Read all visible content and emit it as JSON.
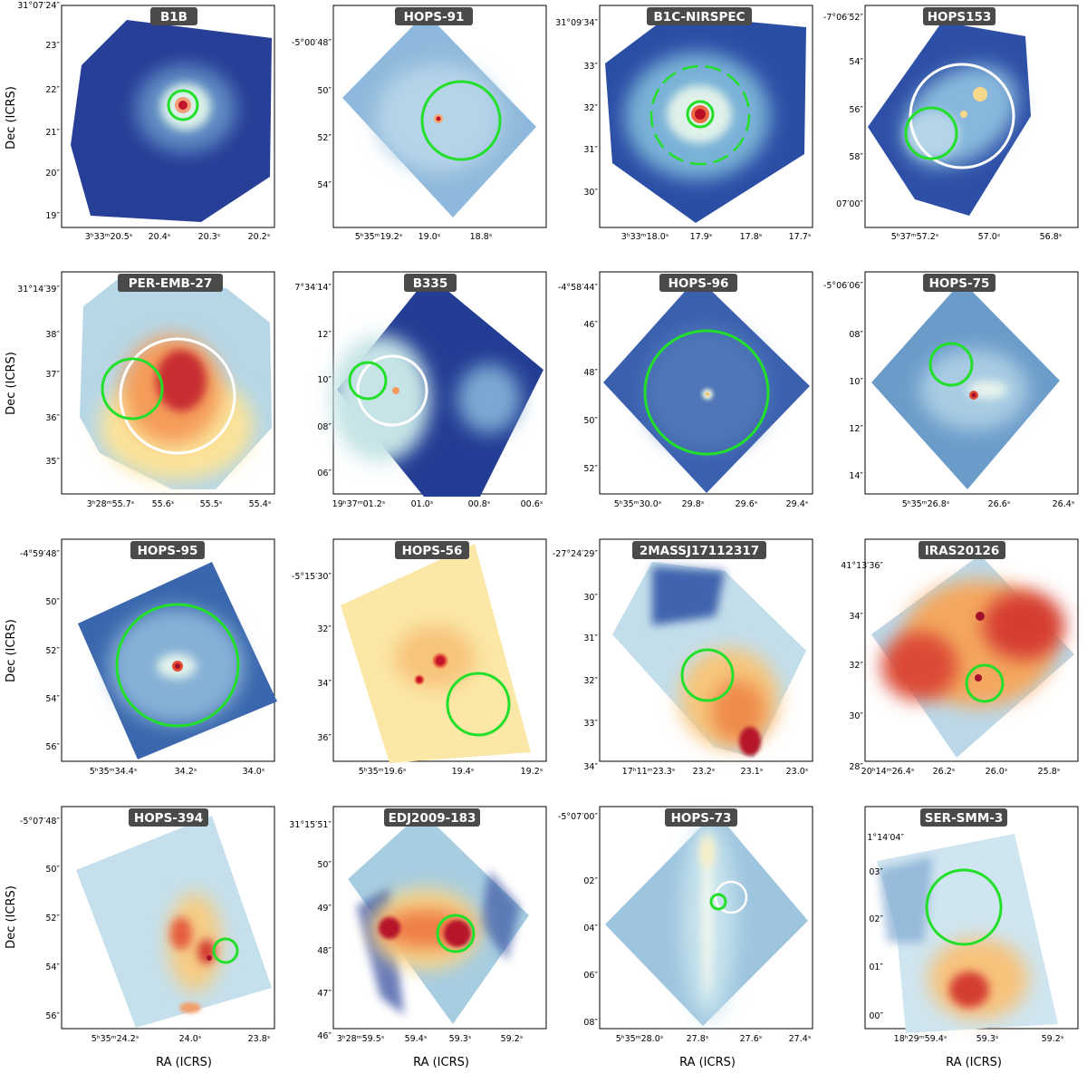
{
  "axis_labels": {
    "ra": "RA (ICRS)",
    "dec": "Dec (ICRS)"
  },
  "colors": {
    "marker_green": "#22e02a",
    "marker_white": "#ffffff",
    "title_bg": "#4a4a4a"
  },
  "panels": [
    {
      "title": "B1B",
      "colormap": "blue",
      "ra_ticks": [
        "3ʰ33ᵐ20.5ˢ",
        "20.4ˢ",
        "20.3ˢ",
        "20.2ˢ"
      ],
      "dec_ticks": [
        "31°07′24″",
        "23″",
        "22″",
        "21″",
        "20″",
        "19″"
      ]
    },
    {
      "title": "HOPS-91",
      "colormap": "lightblue",
      "ra_ticks": [
        "5ʰ35ᵐ19.2ˢ",
        "19.0ˢ",
        "18.8ˢ"
      ],
      "dec_ticks": [
        "-5°00′48″",
        "50″",
        "52″",
        "54″"
      ]
    },
    {
      "title": "B1C-NIRSPEC",
      "colormap": "blue",
      "ra_ticks": [
        "3ʰ33ᵐ18.0ˢ",
        "17.9ˢ",
        "17.8ˢ",
        "17.7ˢ"
      ],
      "dec_ticks": [
        "31°09′34″",
        "33″",
        "32″",
        "31″",
        "30″"
      ]
    },
    {
      "title": "HOPS153",
      "colormap": "blue",
      "ra_ticks": [
        "5ʰ37ᵐ57.2ˢ",
        "57.0ˢ",
        "56.8ˢ"
      ],
      "dec_ticks": [
        "-7°06′52″",
        "54″",
        "56″",
        "58″",
        "07′00″"
      ]
    },
    {
      "title": "PER-EMB-27",
      "colormap": "warm",
      "ra_ticks": [
        "3ʰ28ᵐ55.7ˢ",
        "55.6ˢ",
        "55.5ˢ",
        "55.4ˢ"
      ],
      "dec_ticks": [
        "31°14′39″",
        "38″",
        "37″",
        "36″",
        "35″"
      ]
    },
    {
      "title": "B335",
      "colormap": "blue",
      "ra_ticks": [
        "19ʰ37ᵐ01.2ˢ",
        "01.0ˢ",
        "00.8ˢ",
        "00.6ˢ"
      ],
      "dec_ticks": [
        "7°34′14″",
        "12″",
        "10″",
        "08″",
        "06″"
      ]
    },
    {
      "title": "HOPS-96",
      "colormap": "blue",
      "ra_ticks": [
        "5ʰ35ᵐ30.0ˢ",
        "29.8ˢ",
        "29.6ˢ",
        "29.4ˢ"
      ],
      "dec_ticks": [
        "-4°58′44″",
        "46″",
        "48″",
        "50″",
        "52″"
      ]
    },
    {
      "title": "HOPS-75",
      "colormap": "lightblue",
      "ra_ticks": [
        "5ʰ35ᵐ26.8ˢ",
        "26.6ˢ",
        "26.4ˢ"
      ],
      "dec_ticks": [
        "-5°06′06″",
        "08″",
        "10″",
        "12″",
        "14″"
      ]
    },
    {
      "title": "HOPS-95",
      "colormap": "lightblue",
      "ra_ticks": [
        "5ʰ35ᵐ34.4ˢ",
        "34.2ˢ",
        "34.0ˢ"
      ],
      "dec_ticks": [
        "-4°59′48″",
        "50″",
        "52″",
        "54″",
        "56″"
      ]
    },
    {
      "title": "HOPS-56",
      "colormap": "yellow",
      "ra_ticks": [
        "5ʰ35ᵐ19.6ˢ",
        "19.4ˢ",
        "19.2ˢ"
      ],
      "dec_ticks": [
        "-5°15′30″",
        "32″",
        "34″",
        "36″"
      ]
    },
    {
      "title": "2MASSJ17112317",
      "colormap": "warm",
      "ra_ticks": [
        "17ʰ11ᵐ23.3ˢ",
        "23.2ˢ",
        "23.1ˢ",
        "23.0ˢ"
      ],
      "dec_ticks": [
        "-27°24′29″",
        "30″",
        "31″",
        "32″",
        "33″",
        "34″"
      ]
    },
    {
      "title": "IRAS20126",
      "colormap": "warm",
      "ra_ticks": [
        "20ʰ14ᵐ26.4ˢ",
        "26.2ˢ",
        "26.0ˢ",
        "25.8ˢ"
      ],
      "dec_ticks": [
        "41°13′36″",
        "34″",
        "32″",
        "30″",
        "28″"
      ]
    },
    {
      "title": "HOPS-394",
      "colormap": "lightblue",
      "ra_ticks": [
        "5ʰ35ᵐ24.2ˢ",
        "24.0ˢ",
        "23.8ˢ"
      ],
      "dec_ticks": [
        "-5°07′48″",
        "50″",
        "52″",
        "54″",
        "56″"
      ]
    },
    {
      "title": "EDJ2009-183",
      "colormap": "warm",
      "ra_ticks": [
        "3ʰ28ᵐ59.5ˢ",
        "59.4ˢ",
        "59.3ˢ",
        "59.2ˢ"
      ],
      "dec_ticks": [
        "31°15′51″",
        "50″",
        "49″",
        "48″",
        "47″",
        "46″"
      ]
    },
    {
      "title": "HOPS-73",
      "colormap": "lightblue",
      "ra_ticks": [
        "5ʰ35ᵐ28.0ˢ",
        "27.8ˢ",
        "27.6ˢ",
        "27.4ˢ"
      ],
      "dec_ticks": [
        "-5°07′00″",
        "02″",
        "04″",
        "06″",
        "08″"
      ]
    },
    {
      "title": "SER-SMM-3",
      "colormap": "warm",
      "ra_ticks": [
        "18ʰ29ᵐ59.4ˢ",
        "59.3ˢ",
        "59.2ˢ"
      ],
      "dec_ticks": [
        "1°14′04″",
        "03″",
        "02″",
        "01″",
        "00″"
      ]
    }
  ]
}
